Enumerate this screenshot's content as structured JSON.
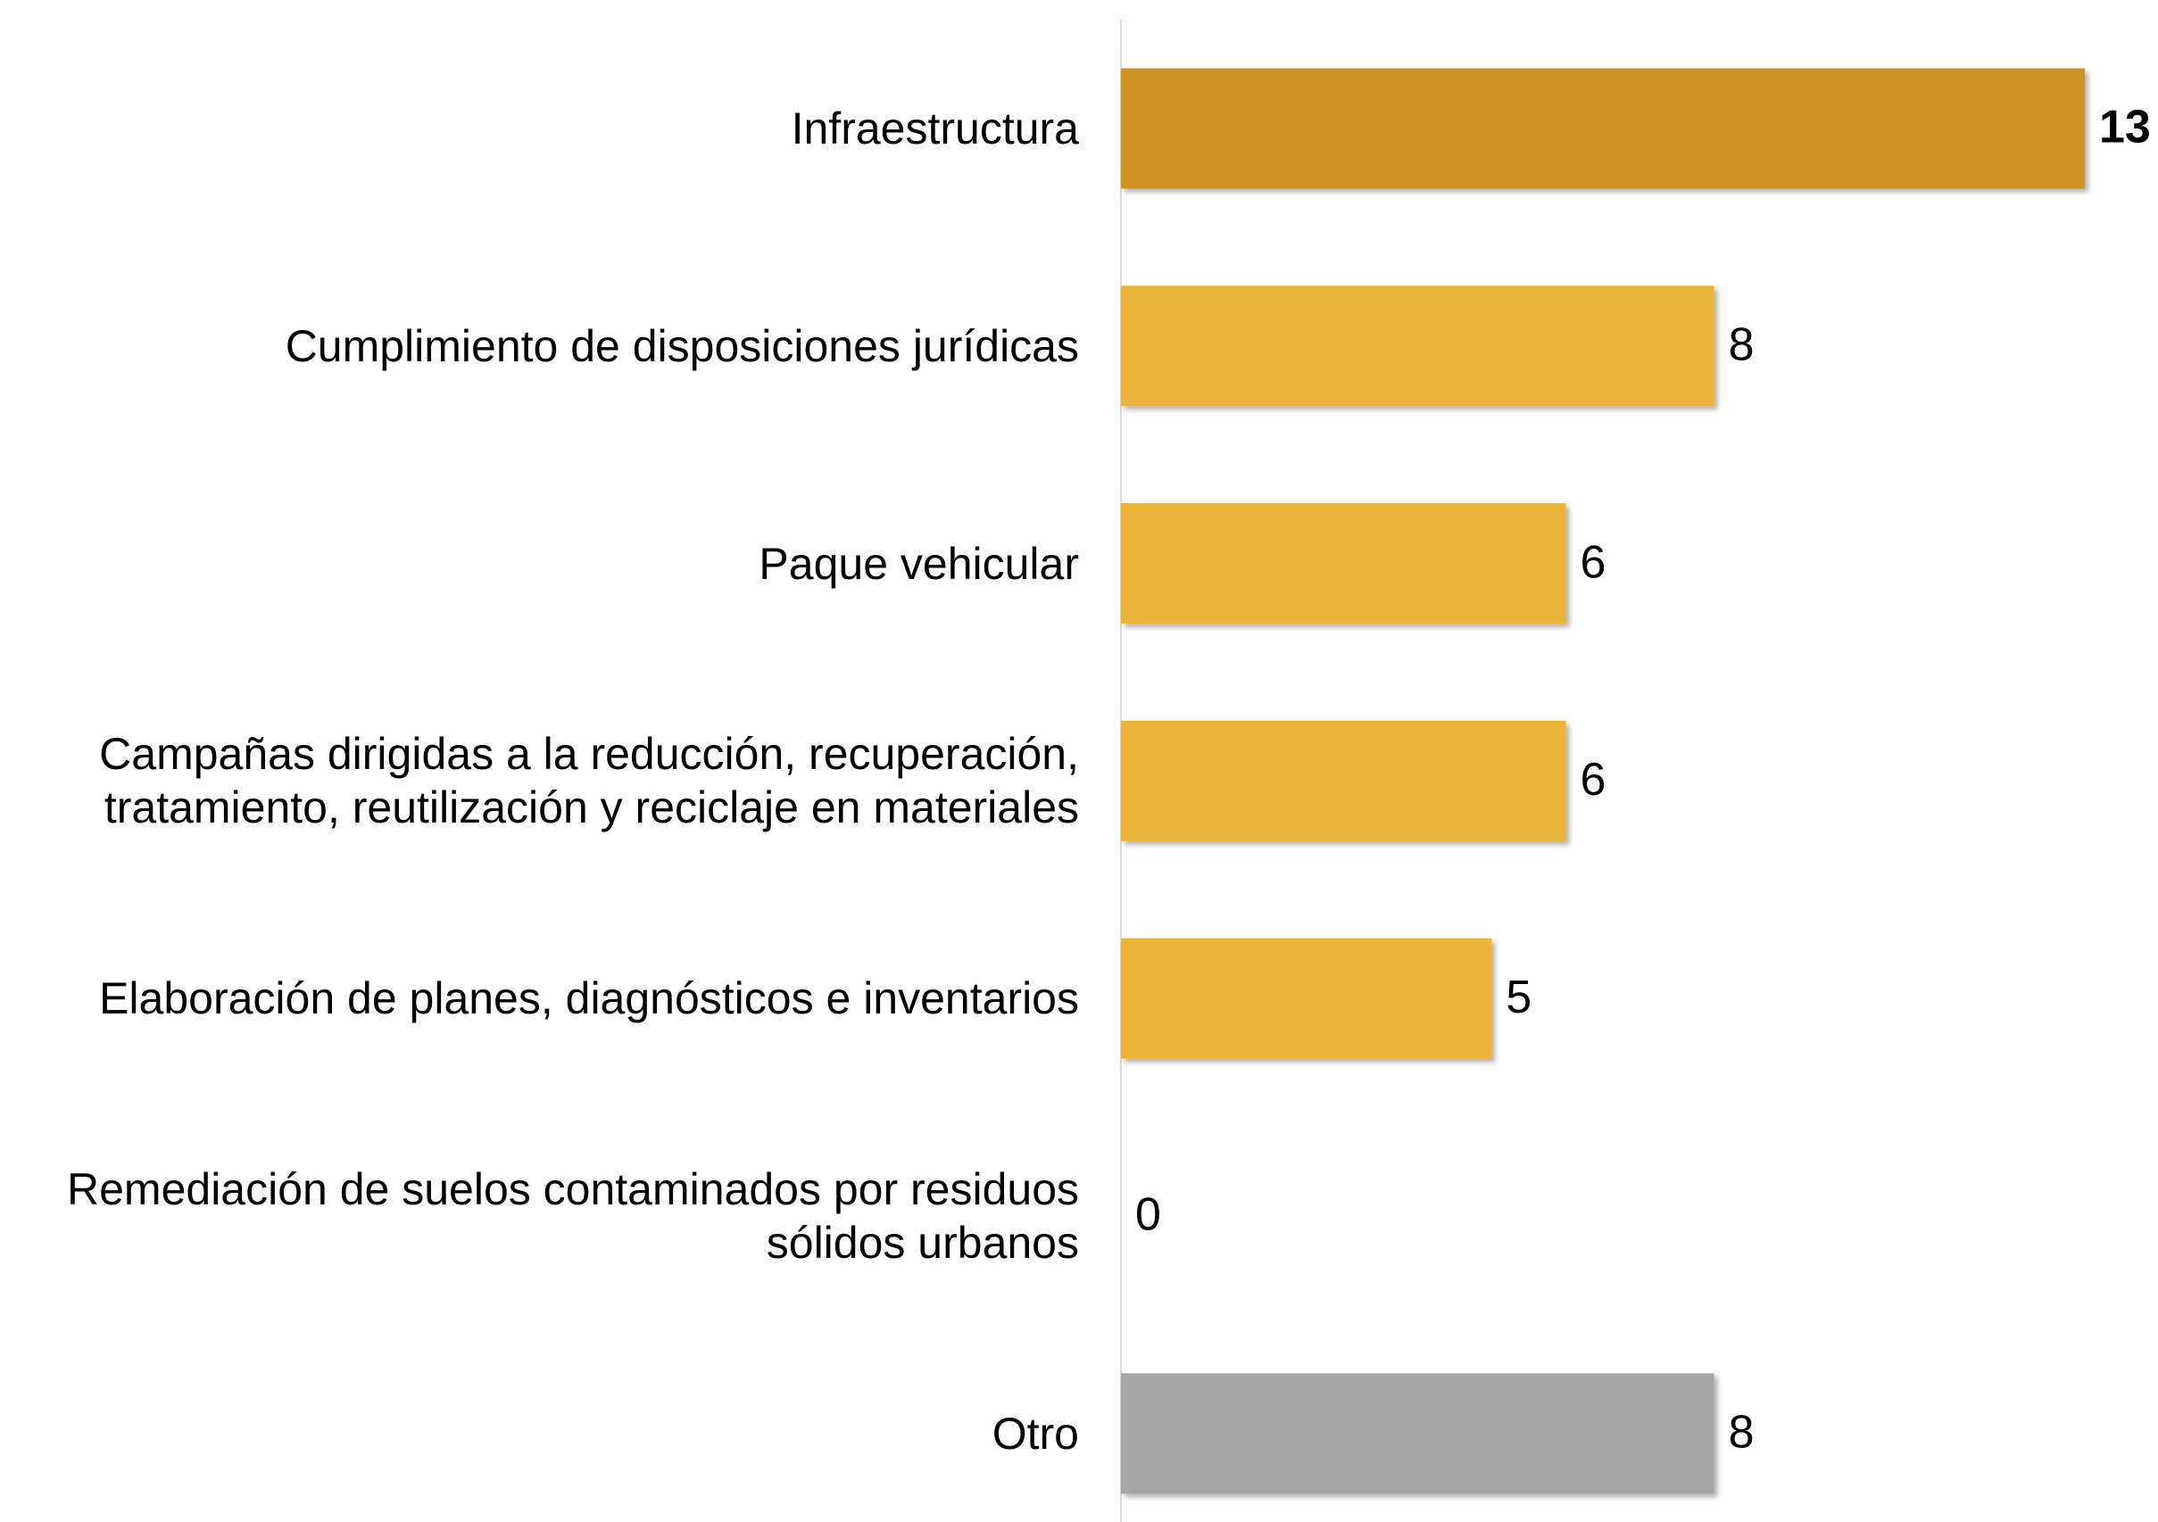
{
  "chart_data": {
    "type": "barh",
    "categories": [
      "Infraestructura",
      "Cumplimiento de disposiciones jurídicas",
      "Paque vehicular",
      "Campañas dirigidas a la reducción, recuperación, tratamiento, reutilización y reciclaje en materiales",
      "Elaboración de planes, diagnósticos e inventarios",
      "Remediación de suelos contaminados por residuos sólidos urbanos",
      "Otro"
    ],
    "values": [
      13,
      8,
      6,
      6,
      5,
      0,
      8
    ],
    "colors": [
      "#cd9322",
      "#ebb53a",
      "#ebb53a",
      "#ebb53a",
      "#ebb53a",
      "#ebb53a",
      "#a6a6a6"
    ],
    "bold_value_index": 0
  }
}
